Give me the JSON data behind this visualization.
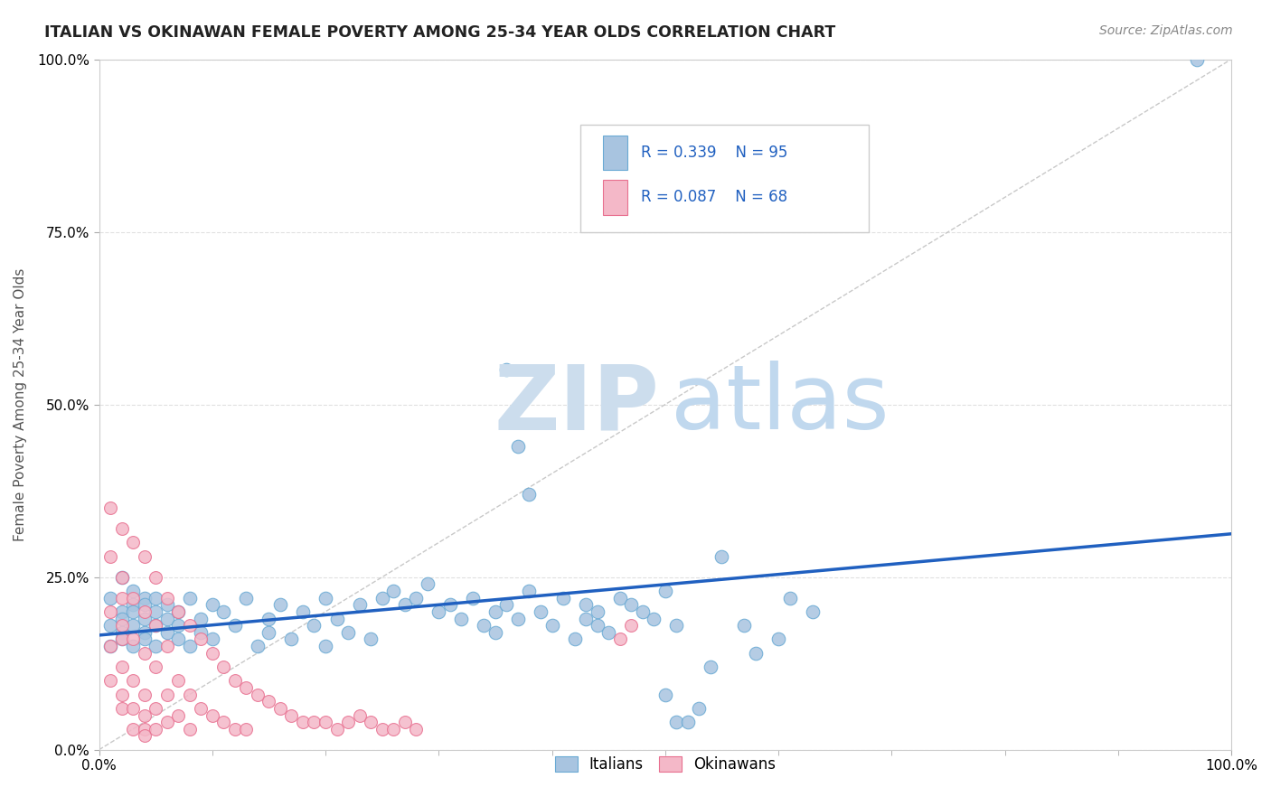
{
  "title": "ITALIAN VS OKINAWAN FEMALE POVERTY AMONG 25-34 YEAR OLDS CORRELATION CHART",
  "source_text": "Source: ZipAtlas.com",
  "ylabel": "Female Poverty Among 25-34 Year Olds",
  "xlim": [
    0,
    1
  ],
  "ylim": [
    0,
    1
  ],
  "legend_r_italian": "R = 0.339",
  "legend_n_italian": "N = 95",
  "legend_r_okinawan": "R = 0.087",
  "legend_n_okinawan": "N = 68",
  "italian_color": "#a8c4e0",
  "italian_edge_color": "#6aaad4",
  "okinawan_color": "#f4b8c8",
  "okinawan_edge_color": "#e87090",
  "trend_line_color": "#2060c0",
  "watermark_zip_color": "#ccdded",
  "watermark_atlas_color": "#c0d8ee",
  "italian_x": [
    0.01,
    0.01,
    0.01,
    0.02,
    0.02,
    0.02,
    0.02,
    0.02,
    0.03,
    0.03,
    0.03,
    0.03,
    0.03,
    0.04,
    0.04,
    0.04,
    0.04,
    0.04,
    0.05,
    0.05,
    0.05,
    0.05,
    0.06,
    0.06,
    0.06,
    0.07,
    0.07,
    0.07,
    0.08,
    0.08,
    0.09,
    0.09,
    0.1,
    0.1,
    0.11,
    0.12,
    0.13,
    0.14,
    0.15,
    0.15,
    0.16,
    0.17,
    0.18,
    0.19,
    0.2,
    0.2,
    0.21,
    0.22,
    0.23,
    0.24,
    0.25,
    0.26,
    0.27,
    0.28,
    0.29,
    0.3,
    0.31,
    0.32,
    0.33,
    0.34,
    0.35,
    0.35,
    0.36,
    0.37,
    0.38,
    0.39,
    0.4,
    0.41,
    0.42,
    0.43,
    0.43,
    0.44,
    0.44,
    0.45,
    0.46,
    0.47,
    0.48,
    0.49,
    0.5,
    0.51,
    0.36,
    0.37,
    0.38,
    0.5,
    0.51,
    0.52,
    0.53,
    0.54,
    0.55,
    0.57,
    0.58,
    0.6,
    0.61,
    0.63,
    0.97
  ],
  "italian_y": [
    0.18,
    0.22,
    0.15,
    0.2,
    0.17,
    0.25,
    0.19,
    0.16,
    0.23,
    0.21,
    0.18,
    0.2,
    0.15,
    0.22,
    0.17,
    0.19,
    0.21,
    0.16,
    0.2,
    0.18,
    0.22,
    0.15,
    0.19,
    0.17,
    0.21,
    0.16,
    0.2,
    0.18,
    0.22,
    0.15,
    0.19,
    0.17,
    0.21,
    0.16,
    0.2,
    0.18,
    0.22,
    0.15,
    0.19,
    0.17,
    0.21,
    0.16,
    0.2,
    0.18,
    0.22,
    0.15,
    0.19,
    0.17,
    0.21,
    0.16,
    0.22,
    0.23,
    0.21,
    0.22,
    0.24,
    0.2,
    0.21,
    0.19,
    0.22,
    0.18,
    0.2,
    0.17,
    0.21,
    0.19,
    0.23,
    0.2,
    0.18,
    0.22,
    0.16,
    0.21,
    0.19,
    0.2,
    0.18,
    0.17,
    0.22,
    0.21,
    0.2,
    0.19,
    0.23,
    0.18,
    0.55,
    0.44,
    0.37,
    0.08,
    0.04,
    0.04,
    0.06,
    0.12,
    0.28,
    0.18,
    0.14,
    0.16,
    0.22,
    0.2,
    1.0
  ],
  "okinawan_x": [
    0.01,
    0.01,
    0.01,
    0.01,
    0.01,
    0.02,
    0.02,
    0.02,
    0.02,
    0.02,
    0.02,
    0.02,
    0.02,
    0.03,
    0.03,
    0.03,
    0.03,
    0.03,
    0.03,
    0.04,
    0.04,
    0.04,
    0.04,
    0.04,
    0.04,
    0.04,
    0.05,
    0.05,
    0.05,
    0.05,
    0.05,
    0.06,
    0.06,
    0.06,
    0.06,
    0.07,
    0.07,
    0.07,
    0.08,
    0.08,
    0.08,
    0.09,
    0.09,
    0.1,
    0.1,
    0.11,
    0.11,
    0.12,
    0.12,
    0.13,
    0.13,
    0.14,
    0.15,
    0.16,
    0.17,
    0.18,
    0.19,
    0.2,
    0.21,
    0.22,
    0.23,
    0.24,
    0.25,
    0.26,
    0.27,
    0.28,
    0.46,
    0.47
  ],
  "okinawan_y": [
    0.35,
    0.28,
    0.2,
    0.15,
    0.1,
    0.32,
    0.25,
    0.18,
    0.12,
    0.08,
    0.22,
    0.16,
    0.06,
    0.3,
    0.22,
    0.16,
    0.1,
    0.06,
    0.03,
    0.28,
    0.2,
    0.14,
    0.08,
    0.05,
    0.03,
    0.02,
    0.25,
    0.18,
    0.12,
    0.06,
    0.03,
    0.22,
    0.15,
    0.08,
    0.04,
    0.2,
    0.1,
    0.05,
    0.18,
    0.08,
    0.03,
    0.16,
    0.06,
    0.14,
    0.05,
    0.12,
    0.04,
    0.1,
    0.03,
    0.09,
    0.03,
    0.08,
    0.07,
    0.06,
    0.05,
    0.04,
    0.04,
    0.04,
    0.03,
    0.04,
    0.05,
    0.04,
    0.03,
    0.03,
    0.04,
    0.03,
    0.16,
    0.18
  ],
  "background_color": "#ffffff",
  "grid_color": "#dddddd"
}
